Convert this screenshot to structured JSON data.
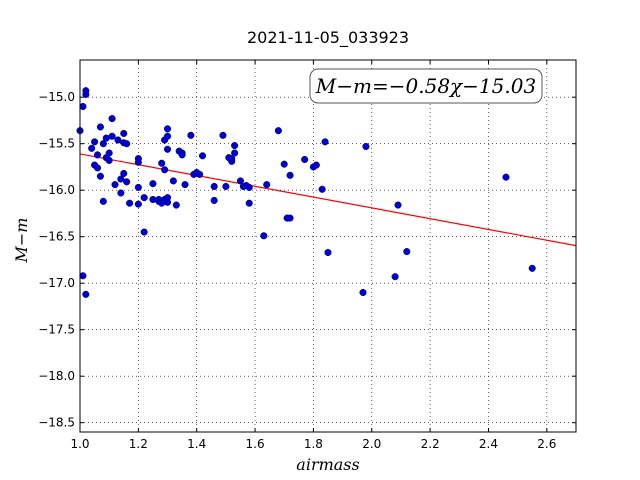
{
  "chart_data": {
    "type": "scatter",
    "title": "2021-11-05_033923",
    "xlabel": "airmass",
    "ylabel": "M−m",
    "xlim": [
      1.0,
      2.7
    ],
    "ylim": [
      -18.6,
      -14.6
    ],
    "y_inverted": true,
    "grid": true,
    "x_ticks": [
      1.0,
      1.2,
      1.4,
      1.6,
      1.8,
      2.0,
      2.2,
      2.4,
      2.6
    ],
    "x_tick_labels": [
      "1.0",
      "1.2",
      "1.4",
      "1.6",
      "1.8",
      "2.0",
      "2.2",
      "2.4",
      "2.6"
    ],
    "y_ticks": [
      -15.0,
      -15.5,
      -16.0,
      -16.5,
      -17.0,
      -17.5,
      -18.0,
      -18.5
    ],
    "y_tick_labels": [
      "−15.0",
      "−15.5",
      "−16.0",
      "−16.5",
      "−17.0",
      "−17.5",
      "−18.0",
      "−18.5"
    ],
    "annotation": "M−m=−0.58χ−15.03",
    "fit_line": {
      "slope": -0.58,
      "intercept": -15.03,
      "color": "#ff0000"
    },
    "point_color": "#0000cc",
    "series": [
      {
        "points": [
          [
            1.0,
            -15.36
          ],
          [
            1.01,
            -15.1
          ],
          [
            1.02,
            -14.97
          ],
          [
            1.02,
            -14.93
          ],
          [
            1.01,
            -16.92
          ],
          [
            1.02,
            -17.12
          ],
          [
            1.04,
            -15.55
          ],
          [
            1.05,
            -15.48
          ],
          [
            1.05,
            -15.73
          ],
          [
            1.06,
            -15.62
          ],
          [
            1.06,
            -15.76
          ],
          [
            1.07,
            -15.32
          ],
          [
            1.07,
            -15.85
          ],
          [
            1.08,
            -15.5
          ],
          [
            1.08,
            -16.12
          ],
          [
            1.09,
            -15.44
          ],
          [
            1.09,
            -15.65
          ],
          [
            1.1,
            -15.6
          ],
          [
            1.1,
            -15.68
          ],
          [
            1.11,
            -15.42
          ],
          [
            1.11,
            -15.23
          ],
          [
            1.12,
            -15.94
          ],
          [
            1.13,
            -15.46
          ],
          [
            1.14,
            -15.88
          ],
          [
            1.14,
            -16.03
          ],
          [
            1.15,
            -15.39
          ],
          [
            1.15,
            -15.49
          ],
          [
            1.15,
            -15.82
          ],
          [
            1.16,
            -15.91
          ],
          [
            1.16,
            -15.5
          ],
          [
            1.17,
            -16.14
          ],
          [
            1.2,
            -15.66
          ],
          [
            1.2,
            -15.7
          ],
          [
            1.2,
            -15.97
          ],
          [
            1.2,
            -16.15
          ],
          [
            1.22,
            -16.08
          ],
          [
            1.22,
            -16.45
          ],
          [
            1.25,
            -15.93
          ],
          [
            1.25,
            -16.1
          ],
          [
            1.27,
            -16.12
          ],
          [
            1.27,
            -16.1
          ],
          [
            1.28,
            -15.71
          ],
          [
            1.28,
            -16.14
          ],
          [
            1.29,
            -15.46
          ],
          [
            1.29,
            -16.1
          ],
          [
            1.29,
            -15.78
          ],
          [
            1.3,
            -15.56
          ],
          [
            1.3,
            -15.42
          ],
          [
            1.3,
            -16.13
          ],
          [
            1.3,
            -15.34
          ],
          [
            1.3,
            -16.08
          ],
          [
            1.32,
            -15.9
          ],
          [
            1.33,
            -16.16
          ],
          [
            1.34,
            -15.58
          ],
          [
            1.35,
            -15.6
          ],
          [
            1.35,
            -15.62
          ],
          [
            1.36,
            -15.94
          ],
          [
            1.38,
            -15.41
          ],
          [
            1.39,
            -15.83
          ],
          [
            1.4,
            -15.81
          ],
          [
            1.41,
            -15.83
          ],
          [
            1.42,
            -15.63
          ],
          [
            1.46,
            -15.96
          ],
          [
            1.46,
            -16.11
          ],
          [
            1.49,
            -15.41
          ],
          [
            1.5,
            -15.96
          ],
          [
            1.51,
            -15.65
          ],
          [
            1.52,
            -15.69
          ],
          [
            1.52,
            -15.66
          ],
          [
            1.53,
            -15.52
          ],
          [
            1.53,
            -15.6
          ],
          [
            1.55,
            -15.9
          ],
          [
            1.56,
            -15.96
          ],
          [
            1.57,
            -15.95
          ],
          [
            1.58,
            -16.14
          ],
          [
            1.58,
            -15.97
          ],
          [
            1.63,
            -16.49
          ],
          [
            1.64,
            -15.94
          ],
          [
            1.68,
            -15.36
          ],
          [
            1.7,
            -15.72
          ],
          [
            1.71,
            -16.3
          ],
          [
            1.72,
            -16.3
          ],
          [
            1.72,
            -15.84
          ],
          [
            1.77,
            -15.67
          ],
          [
            1.8,
            -15.75
          ],
          [
            1.81,
            -15.73
          ],
          [
            1.83,
            -15.99
          ],
          [
            1.84,
            -15.48
          ],
          [
            1.85,
            -16.67
          ],
          [
            1.97,
            -17.1
          ],
          [
            1.98,
            -15.53
          ],
          [
            2.08,
            -16.93
          ],
          [
            2.09,
            -16.16
          ],
          [
            2.12,
            -16.66
          ],
          [
            2.46,
            -15.86
          ],
          [
            2.55,
            -16.84
          ]
        ]
      }
    ]
  }
}
